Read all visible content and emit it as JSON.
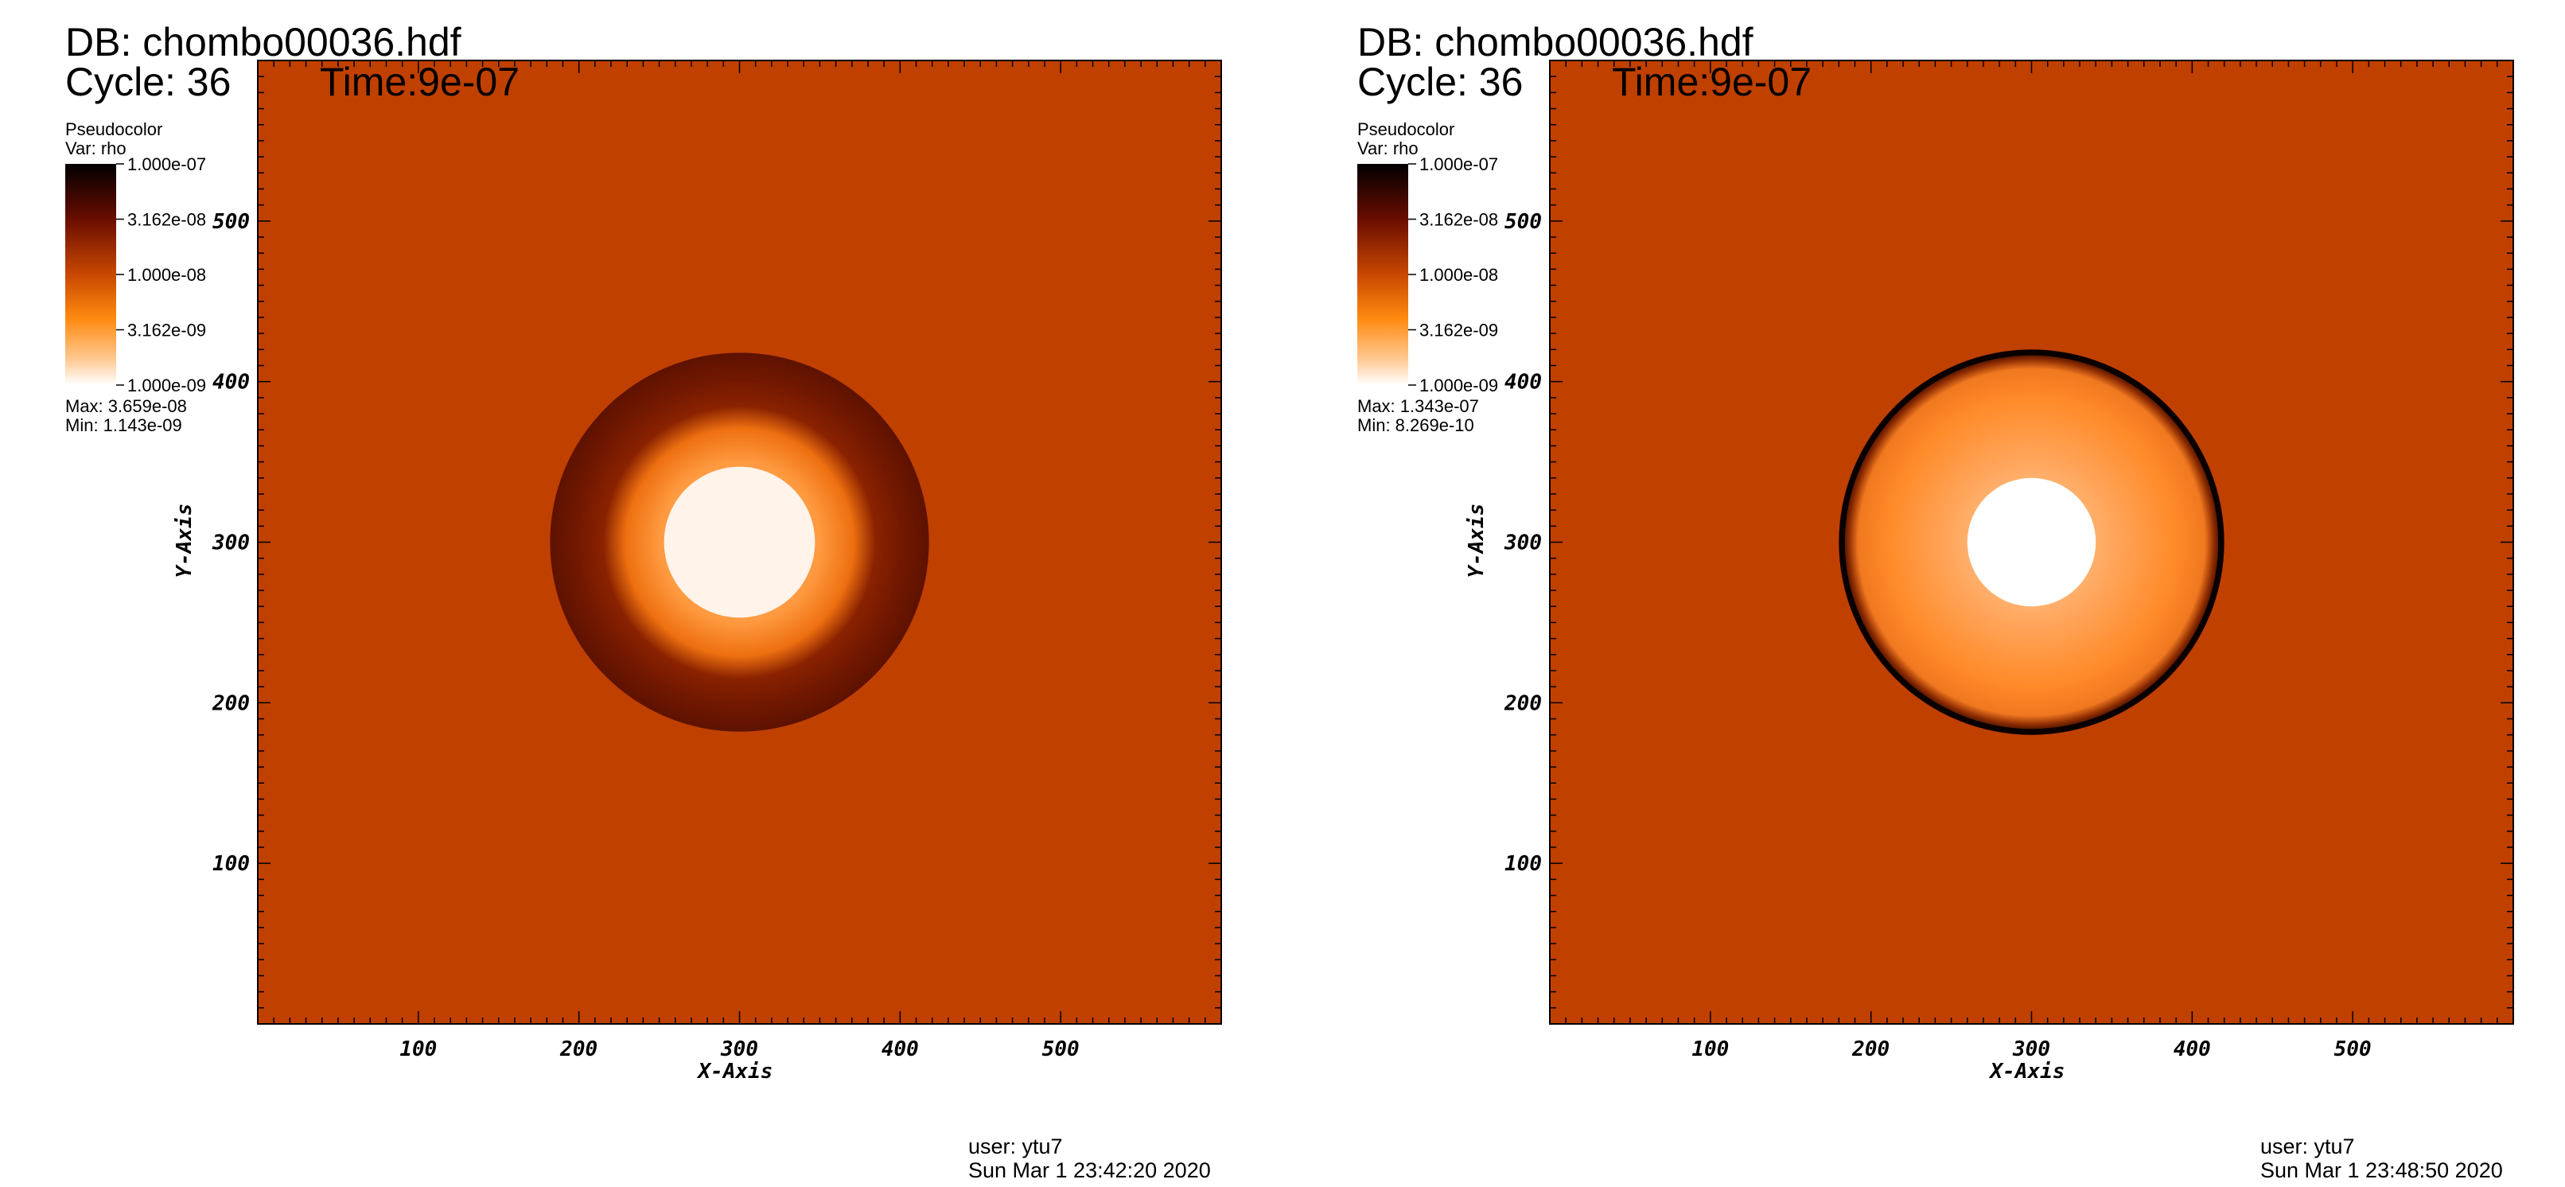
{
  "chart_data": [
    {
      "type": "heatmap",
      "db_title": "DB: chombo00036.hdf",
      "cycle_label": "Cycle: 36",
      "time_label": "Time:9e-07",
      "legend_title": "Pseudocolor",
      "legend_var": "Var: rho",
      "colorbar_ticks": [
        "1.000e-07",
        "3.162e-08",
        "1.000e-08",
        "3.162e-09",
        "1.000e-09"
      ],
      "colorbar_range": [
        1e-09,
        1e-07
      ],
      "colorbar_scale": "log",
      "max_label": "Max:  3.659e-08",
      "min_label": "Min:  1.143e-09",
      "xlabel": "X-Axis",
      "ylabel": "Y-Axis",
      "x_ticks": [
        100,
        200,
        300,
        400,
        500
      ],
      "y_ticks": [
        100,
        200,
        300,
        400,
        500
      ],
      "xlim": [
        0,
        600
      ],
      "ylim": [
        0,
        600
      ],
      "background_color": "#c04000",
      "shell": {
        "center": [
          300,
          300
        ],
        "outer_radius": 118,
        "inner_radius": 47,
        "rim": "thick dark band",
        "core_color": "#fff3ea"
      },
      "footer_user": "user: ytu7",
      "footer_date": "Sun Mar  1 23:42:20 2020"
    },
    {
      "type": "heatmap",
      "db_title": "DB: chombo00036.hdf",
      "cycle_label": "Cycle: 36",
      "time_label": "Time:9e-07",
      "legend_title": "Pseudocolor",
      "legend_var": "Var: rho",
      "colorbar_ticks": [
        "1.000e-07",
        "3.162e-08",
        "1.000e-08",
        "3.162e-09",
        "1.000e-09"
      ],
      "colorbar_range": [
        1e-09,
        1e-07
      ],
      "colorbar_scale": "log",
      "max_label": "Max:  1.343e-07",
      "min_label": "Min:  8.269e-10",
      "xlabel": "X-Axis",
      "ylabel": "Y-Axis",
      "x_ticks": [
        100,
        200,
        300,
        400,
        500
      ],
      "y_ticks": [
        100,
        200,
        300,
        400,
        500
      ],
      "xlim": [
        0,
        600
      ],
      "ylim": [
        0,
        600
      ],
      "background_color": "#c04000",
      "shell": {
        "center": [
          300,
          300
        ],
        "outer_radius": 120,
        "inner_radius": 40,
        "rim": "thin black band",
        "core_color": "#ffffff"
      },
      "footer_user": "user: ytu7",
      "footer_date": "Sun Mar  1 23:48:50 2020"
    }
  ]
}
